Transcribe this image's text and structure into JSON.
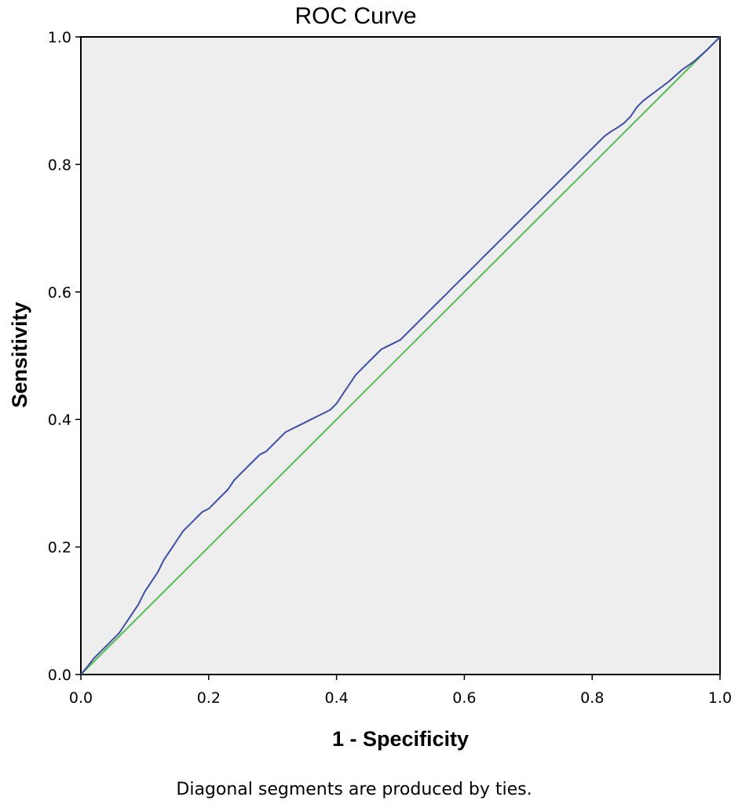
{
  "chart_data": {
    "type": "line",
    "title": "ROC Curve",
    "xlabel": "1 - Specificity",
    "ylabel": "Sensitivity",
    "xlim": [
      0.0,
      1.0
    ],
    "ylim": [
      0.0,
      1.0
    ],
    "x_ticks": [
      "0.0",
      "0.2",
      "0.4",
      "0.6",
      "0.8",
      "1.0"
    ],
    "y_ticks": [
      "0.0",
      "0.2",
      "0.4",
      "0.6",
      "0.8",
      "1.0"
    ],
    "grid": false,
    "legend": "none",
    "footnote": "Diagonal segments are produced by ties.",
    "plot_background": "#eeeeee",
    "series": [
      {
        "color": "#3c4fa3",
        "points": [
          [
            0.0,
            0.0
          ],
          [
            0.01,
            0.012
          ],
          [
            0.02,
            0.025
          ],
          [
            0.03,
            0.035
          ],
          [
            0.04,
            0.045
          ],
          [
            0.05,
            0.055
          ],
          [
            0.06,
            0.065
          ],
          [
            0.07,
            0.08
          ],
          [
            0.08,
            0.095
          ],
          [
            0.09,
            0.11
          ],
          [
            0.1,
            0.13
          ],
          [
            0.11,
            0.145
          ],
          [
            0.12,
            0.16
          ],
          [
            0.13,
            0.18
          ],
          [
            0.14,
            0.195
          ],
          [
            0.15,
            0.21
          ],
          [
            0.16,
            0.225
          ],
          [
            0.17,
            0.235
          ],
          [
            0.18,
            0.245
          ],
          [
            0.19,
            0.255
          ],
          [
            0.2,
            0.26
          ],
          [
            0.21,
            0.27
          ],
          [
            0.22,
            0.28
          ],
          [
            0.23,
            0.29
          ],
          [
            0.24,
            0.305
          ],
          [
            0.25,
            0.315
          ],
          [
            0.26,
            0.325
          ],
          [
            0.27,
            0.335
          ],
          [
            0.28,
            0.345
          ],
          [
            0.29,
            0.35
          ],
          [
            0.3,
            0.36
          ],
          [
            0.31,
            0.37
          ],
          [
            0.32,
            0.38
          ],
          [
            0.33,
            0.385
          ],
          [
            0.34,
            0.39
          ],
          [
            0.35,
            0.395
          ],
          [
            0.36,
            0.4
          ],
          [
            0.37,
            0.405
          ],
          [
            0.38,
            0.41
          ],
          [
            0.39,
            0.415
          ],
          [
            0.4,
            0.425
          ],
          [
            0.41,
            0.44
          ],
          [
            0.42,
            0.455
          ],
          [
            0.43,
            0.47
          ],
          [
            0.44,
            0.48
          ],
          [
            0.45,
            0.49
          ],
          [
            0.46,
            0.5
          ],
          [
            0.47,
            0.51
          ],
          [
            0.48,
            0.515
          ],
          [
            0.49,
            0.52
          ],
          [
            0.5,
            0.525
          ],
          [
            0.51,
            0.535
          ],
          [
            0.52,
            0.545
          ],
          [
            0.53,
            0.555
          ],
          [
            0.54,
            0.565
          ],
          [
            0.55,
            0.575
          ],
          [
            0.56,
            0.585
          ],
          [
            0.57,
            0.595
          ],
          [
            0.58,
            0.605
          ],
          [
            0.59,
            0.615
          ],
          [
            0.6,
            0.625
          ],
          [
            0.61,
            0.635
          ],
          [
            0.62,
            0.645
          ],
          [
            0.63,
            0.655
          ],
          [
            0.64,
            0.665
          ],
          [
            0.65,
            0.675
          ],
          [
            0.66,
            0.685
          ],
          [
            0.67,
            0.695
          ],
          [
            0.68,
            0.705
          ],
          [
            0.69,
            0.715
          ],
          [
            0.7,
            0.725
          ],
          [
            0.71,
            0.735
          ],
          [
            0.72,
            0.745
          ],
          [
            0.73,
            0.755
          ],
          [
            0.74,
            0.765
          ],
          [
            0.75,
            0.775
          ],
          [
            0.76,
            0.785
          ],
          [
            0.77,
            0.795
          ],
          [
            0.78,
            0.805
          ],
          [
            0.79,
            0.815
          ],
          [
            0.8,
            0.825
          ],
          [
            0.81,
            0.835
          ],
          [
            0.82,
            0.845
          ],
          [
            0.83,
            0.852
          ],
          [
            0.84,
            0.858
          ],
          [
            0.85,
            0.865
          ],
          [
            0.86,
            0.875
          ],
          [
            0.87,
            0.89
          ],
          [
            0.88,
            0.9
          ],
          [
            0.9,
            0.915
          ],
          [
            0.92,
            0.93
          ],
          [
            0.94,
            0.948
          ],
          [
            0.96,
            0.962
          ],
          [
            0.98,
            0.98
          ],
          [
            1.0,
            1.0
          ]
        ]
      },
      {
        "color": "#55bb55",
        "points": [
          [
            0.0,
            0.0
          ],
          [
            1.0,
            1.0
          ]
        ]
      }
    ]
  }
}
